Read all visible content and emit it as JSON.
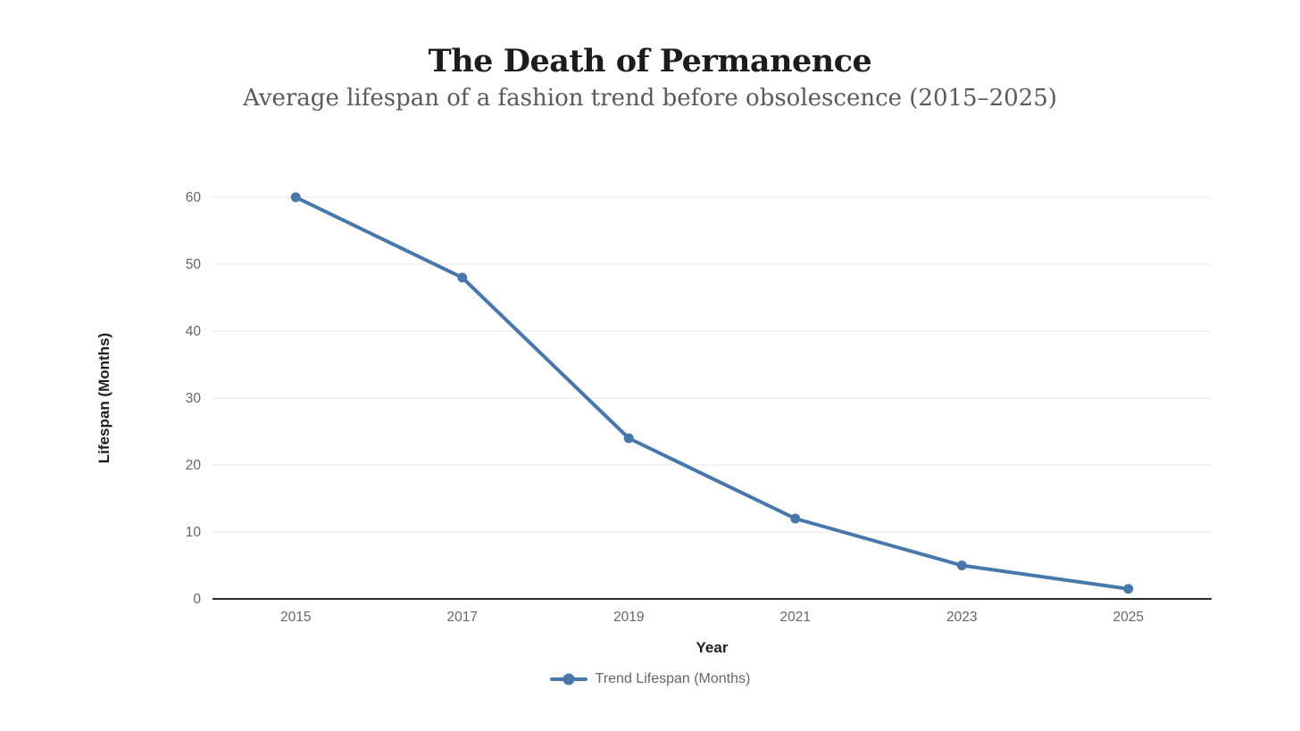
{
  "chart_data": {
    "type": "line",
    "title": "The Death of Permanence",
    "subtitle": "Average lifespan of a fashion trend before obsolescence (2015–2025)",
    "xlabel": "Year",
    "ylabel": "Lifespan (Months)",
    "categories": [
      "2015",
      "2017",
      "2019",
      "2021",
      "2023",
      "2025"
    ],
    "series": [
      {
        "name": "Trend Lifespan (Months)",
        "values": [
          60,
          48,
          24,
          12,
          5,
          1.5
        ]
      }
    ],
    "ylim": [
      0,
      60
    ],
    "yticks": [
      0,
      10,
      20,
      30,
      40,
      50,
      60
    ],
    "grid": true,
    "legend_position": "bottom",
    "marker": "circle",
    "colors": {
      "line": "#4878ab",
      "grid": "#e9e9e9",
      "axis_line": "#2b2b2b",
      "tick_label": "#666666",
      "axis_title": "#1f1f1f",
      "title": "#1c1c1c",
      "subtitle": "#5a5a5a",
      "legend_text": "#666666",
      "background": "#ffffff"
    }
  }
}
